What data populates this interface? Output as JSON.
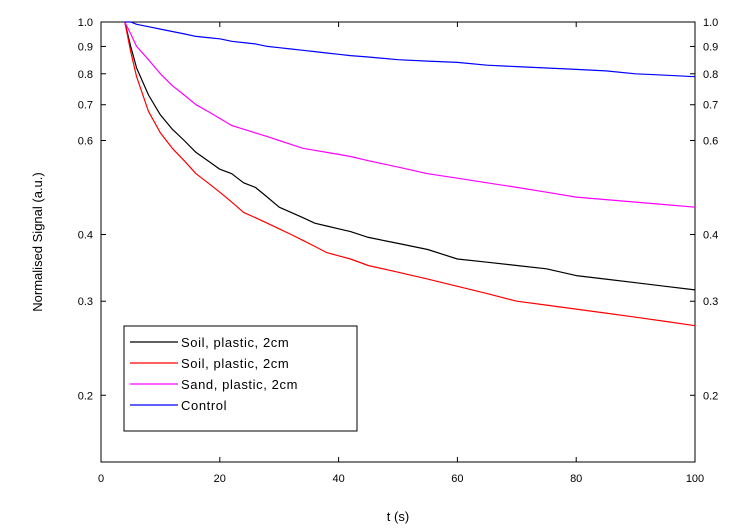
{
  "chart_data": {
    "type": "line",
    "title": "",
    "xlabel": "t (s)",
    "ylabel": "Normalised Signal (a.u.)",
    "xlim": [
      0,
      100
    ],
    "ylim": [
      0.15,
      1.0
    ],
    "yscale": "log",
    "grid": false,
    "legend_position": "bottom-left",
    "x_ticks": [
      "0",
      "20",
      "40",
      "60",
      "80",
      "100"
    ],
    "y_ticks": [
      {
        "value": 0.2,
        "label": "0.2"
      },
      {
        "value": 0.3,
        "label": "0.3"
      },
      {
        "value": 0.4,
        "label": "0.4"
      },
      {
        "value": 0.6,
        "label": "0.6"
      },
      {
        "value": 0.7,
        "label": "0.7"
      },
      {
        "value": 0.8,
        "label": "0.8"
      },
      {
        "value": 0.9,
        "label": "0.9"
      },
      {
        "value": 1.0,
        "label": "1.0"
      }
    ],
    "series": [
      {
        "name": "Soil, plastic, 2cm",
        "color": "#000000",
        "x": [
          4,
          5,
          6,
          8,
          10,
          12,
          14,
          16,
          18,
          20,
          22,
          24,
          26,
          28,
          30,
          32,
          34,
          36,
          38,
          40,
          42,
          45,
          50,
          55,
          60,
          65,
          70,
          75,
          80,
          85,
          90,
          95,
          100
        ],
        "y": [
          1.0,
          0.9,
          0.82,
          0.73,
          0.67,
          0.63,
          0.6,
          0.57,
          0.55,
          0.53,
          0.52,
          0.5,
          0.49,
          0.47,
          0.45,
          0.44,
          0.43,
          0.42,
          0.415,
          0.41,
          0.405,
          0.395,
          0.385,
          0.375,
          0.36,
          0.355,
          0.35,
          0.345,
          0.335,
          0.33,
          0.325,
          0.32,
          0.315
        ]
      },
      {
        "name": "Soil, plastic, 2cm",
        "color": "#ff0000",
        "x": [
          4,
          5,
          6,
          8,
          10,
          12,
          14,
          16,
          18,
          20,
          22,
          24,
          26,
          28,
          30,
          32,
          34,
          36,
          38,
          40,
          42,
          45,
          50,
          55,
          60,
          65,
          70,
          75,
          80,
          85,
          90,
          95,
          100
        ],
        "y": [
          1.0,
          0.88,
          0.79,
          0.68,
          0.62,
          0.58,
          0.55,
          0.52,
          0.5,
          0.48,
          0.46,
          0.44,
          0.43,
          0.42,
          0.41,
          0.4,
          0.39,
          0.38,
          0.37,
          0.365,
          0.36,
          0.35,
          0.34,
          0.33,
          0.32,
          0.31,
          0.3,
          0.295,
          0.29,
          0.285,
          0.28,
          0.275,
          0.27
        ]
      },
      {
        "name": "Sand, plastic, 2cm",
        "color": "#ff00ff",
        "x": [
          4,
          5,
          6,
          8,
          10,
          12,
          14,
          16,
          18,
          20,
          22,
          24,
          26,
          28,
          30,
          32,
          34,
          36,
          38,
          40,
          42,
          45,
          50,
          55,
          60,
          65,
          70,
          75,
          80,
          85,
          90,
          95,
          100
        ],
        "y": [
          1.0,
          0.95,
          0.9,
          0.85,
          0.8,
          0.76,
          0.73,
          0.7,
          0.68,
          0.66,
          0.64,
          0.63,
          0.62,
          0.61,
          0.6,
          0.59,
          0.58,
          0.575,
          0.57,
          0.565,
          0.56,
          0.55,
          0.535,
          0.52,
          0.51,
          0.5,
          0.49,
          0.48,
          0.47,
          0.465,
          0.46,
          0.455,
          0.45
        ]
      },
      {
        "name": "Control",
        "color": "#0000ff",
        "x": [
          4,
          5,
          6,
          8,
          10,
          12,
          14,
          16,
          18,
          20,
          22,
          24,
          26,
          28,
          30,
          32,
          34,
          36,
          38,
          40,
          42,
          45,
          50,
          55,
          60,
          65,
          70,
          75,
          80,
          85,
          90,
          95,
          100
        ],
        "y": [
          1.0,
          1.0,
          0.99,
          0.98,
          0.97,
          0.96,
          0.95,
          0.94,
          0.935,
          0.93,
          0.92,
          0.915,
          0.91,
          0.9,
          0.895,
          0.89,
          0.885,
          0.88,
          0.875,
          0.87,
          0.865,
          0.86,
          0.85,
          0.845,
          0.84,
          0.83,
          0.825,
          0.82,
          0.815,
          0.81,
          0.8,
          0.795,
          0.79
        ]
      }
    ]
  }
}
